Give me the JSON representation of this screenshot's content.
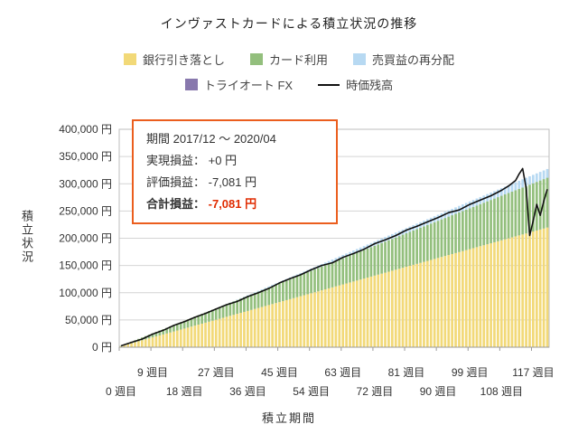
{
  "title": "インヴァストカードによる積立状況の推移",
  "legend": {
    "row1": [
      {
        "label": "銀行引き落とし",
        "color": "#f2d978",
        "marker": "box"
      },
      {
        "label": "カード利用",
        "color": "#93bf7d",
        "marker": "box"
      },
      {
        "label": "売買益の再分配",
        "color": "#b7d9f2",
        "marker": "box"
      }
    ],
    "row2": [
      {
        "label": "トライオート FX",
        "color": "#8878ad",
        "marker": "box"
      },
      {
        "label": "時価残高",
        "color": "#111111",
        "marker": "line"
      }
    ]
  },
  "annotation": {
    "period": "期間 2017/12 ～ 2020/04",
    "realized_label": "実現損益：",
    "realized_value": "+0 円",
    "unrealized_label": "評価損益：",
    "unrealized_value": "-7,081 円",
    "total_label": "合計損益：",
    "total_value": "-7,081 円",
    "border_color": "#eb5e1e",
    "total_value_color": "#e02b00"
  },
  "axes": {
    "y_label": "積立状況",
    "x_label": "積立期間",
    "y_ticks": [
      "0 円",
      "50,000 円",
      "100,000 円",
      "150,000 円",
      "200,000 円",
      "250,000 円",
      "300,000 円",
      "350,000 円",
      "400,000 円"
    ],
    "x_ticks_upper": [
      {
        "label": "9 週目",
        "week": 9
      },
      {
        "label": "27 週目",
        "week": 27
      },
      {
        "label": "45 週目",
        "week": 45
      },
      {
        "label": "63 週目",
        "week": 63
      },
      {
        "label": "81 週目",
        "week": 81
      },
      {
        "label": "99 週目",
        "week": 99
      },
      {
        "label": "117 週目",
        "week": 117
      }
    ],
    "x_ticks_lower": [
      {
        "label": "0 週目",
        "week": 0
      },
      {
        "label": "18 週目",
        "week": 18
      },
      {
        "label": "36 週目",
        "week": 36
      },
      {
        "label": "54 週目",
        "week": 54
      },
      {
        "label": "72 週目",
        "week": 72
      },
      {
        "label": "90 週目",
        "week": 90
      },
      {
        "label": "108 週目",
        "week": 108
      }
    ]
  },
  "chart_data": {
    "type": "bar",
    "stacked": true,
    "title": "インヴァストカードによる積立状況の推移",
    "xlabel": "積立期間",
    "ylabel": "積立状況",
    "x_unit": "週目",
    "x_range": [
      0,
      121
    ],
    "y_range": [
      0,
      400000
    ],
    "grid": true,
    "legend_position": "top",
    "sample_weeks": [
      0,
      9,
      18,
      27,
      36,
      45,
      54,
      63,
      72,
      81,
      90,
      99,
      108,
      117,
      121
    ],
    "series": [
      {
        "name": "銀行引き落とし",
        "color": "#f2d978",
        "values": [
          1800,
          18000,
          34200,
          50400,
          66600,
          82800,
          99000,
          115200,
          131400,
          147600,
          163800,
          180000,
          196200,
          212400,
          219600
        ]
      },
      {
        "name": "カード利用",
        "color": "#93bf7d",
        "values": [
          750,
          7500,
          14250,
          21000,
          27750,
          34500,
          41250,
          48000,
          54750,
          61500,
          68250,
          75000,
          81750,
          88500,
          91500
        ]
      },
      {
        "name": "売買益の再分配",
        "color": "#b7d9f2",
        "values": [
          0,
          0,
          0,
          0,
          1000,
          2500,
          4200,
          6000,
          7800,
          9500,
          11000,
          12500,
          14000,
          15500,
          16000
        ]
      },
      {
        "name": "トライオート FX",
        "color": "#8878ad",
        "values": [
          0,
          0,
          0,
          0,
          0,
          0,
          0,
          0,
          0,
          0,
          0,
          0,
          0,
          0,
          0
        ]
      }
    ],
    "line_series": {
      "name": "時価残高",
      "color": "#111111",
      "points": [
        [
          0,
          2500
        ],
        [
          3,
          9000
        ],
        [
          6,
          15000
        ],
        [
          9,
          24000
        ],
        [
          12,
          31000
        ],
        [
          15,
          40000
        ],
        [
          18,
          47000
        ],
        [
          21,
          55000
        ],
        [
          24,
          62000
        ],
        [
          27,
          70000
        ],
        [
          30,
          78000
        ],
        [
          33,
          84000
        ],
        [
          36,
          93000
        ],
        [
          39,
          100000
        ],
        [
          42,
          108000
        ],
        [
          45,
          118000
        ],
        [
          48,
          126000
        ],
        [
          51,
          133000
        ],
        [
          54,
          142000
        ],
        [
          57,
          150000
        ],
        [
          60,
          155000
        ],
        [
          63,
          165000
        ],
        [
          66,
          172000
        ],
        [
          69,
          180000
        ],
        [
          72,
          190000
        ],
        [
          75,
          197000
        ],
        [
          78,
          205000
        ],
        [
          81,
          215000
        ],
        [
          84,
          222000
        ],
        [
          87,
          230000
        ],
        [
          90,
          238000
        ],
        [
          93,
          247000
        ],
        [
          96,
          252000
        ],
        [
          99,
          262000
        ],
        [
          102,
          270000
        ],
        [
          105,
          278000
        ],
        [
          108,
          288000
        ],
        [
          110,
          296000
        ],
        [
          112,
          306000
        ],
        [
          113,
          318000
        ],
        [
          114,
          328000
        ],
        [
          115,
          292000
        ],
        [
          116,
          205000
        ],
        [
          117,
          232000
        ],
        [
          118,
          262000
        ],
        [
          119,
          242000
        ],
        [
          120,
          268000
        ],
        [
          121,
          290000
        ]
      ]
    }
  }
}
